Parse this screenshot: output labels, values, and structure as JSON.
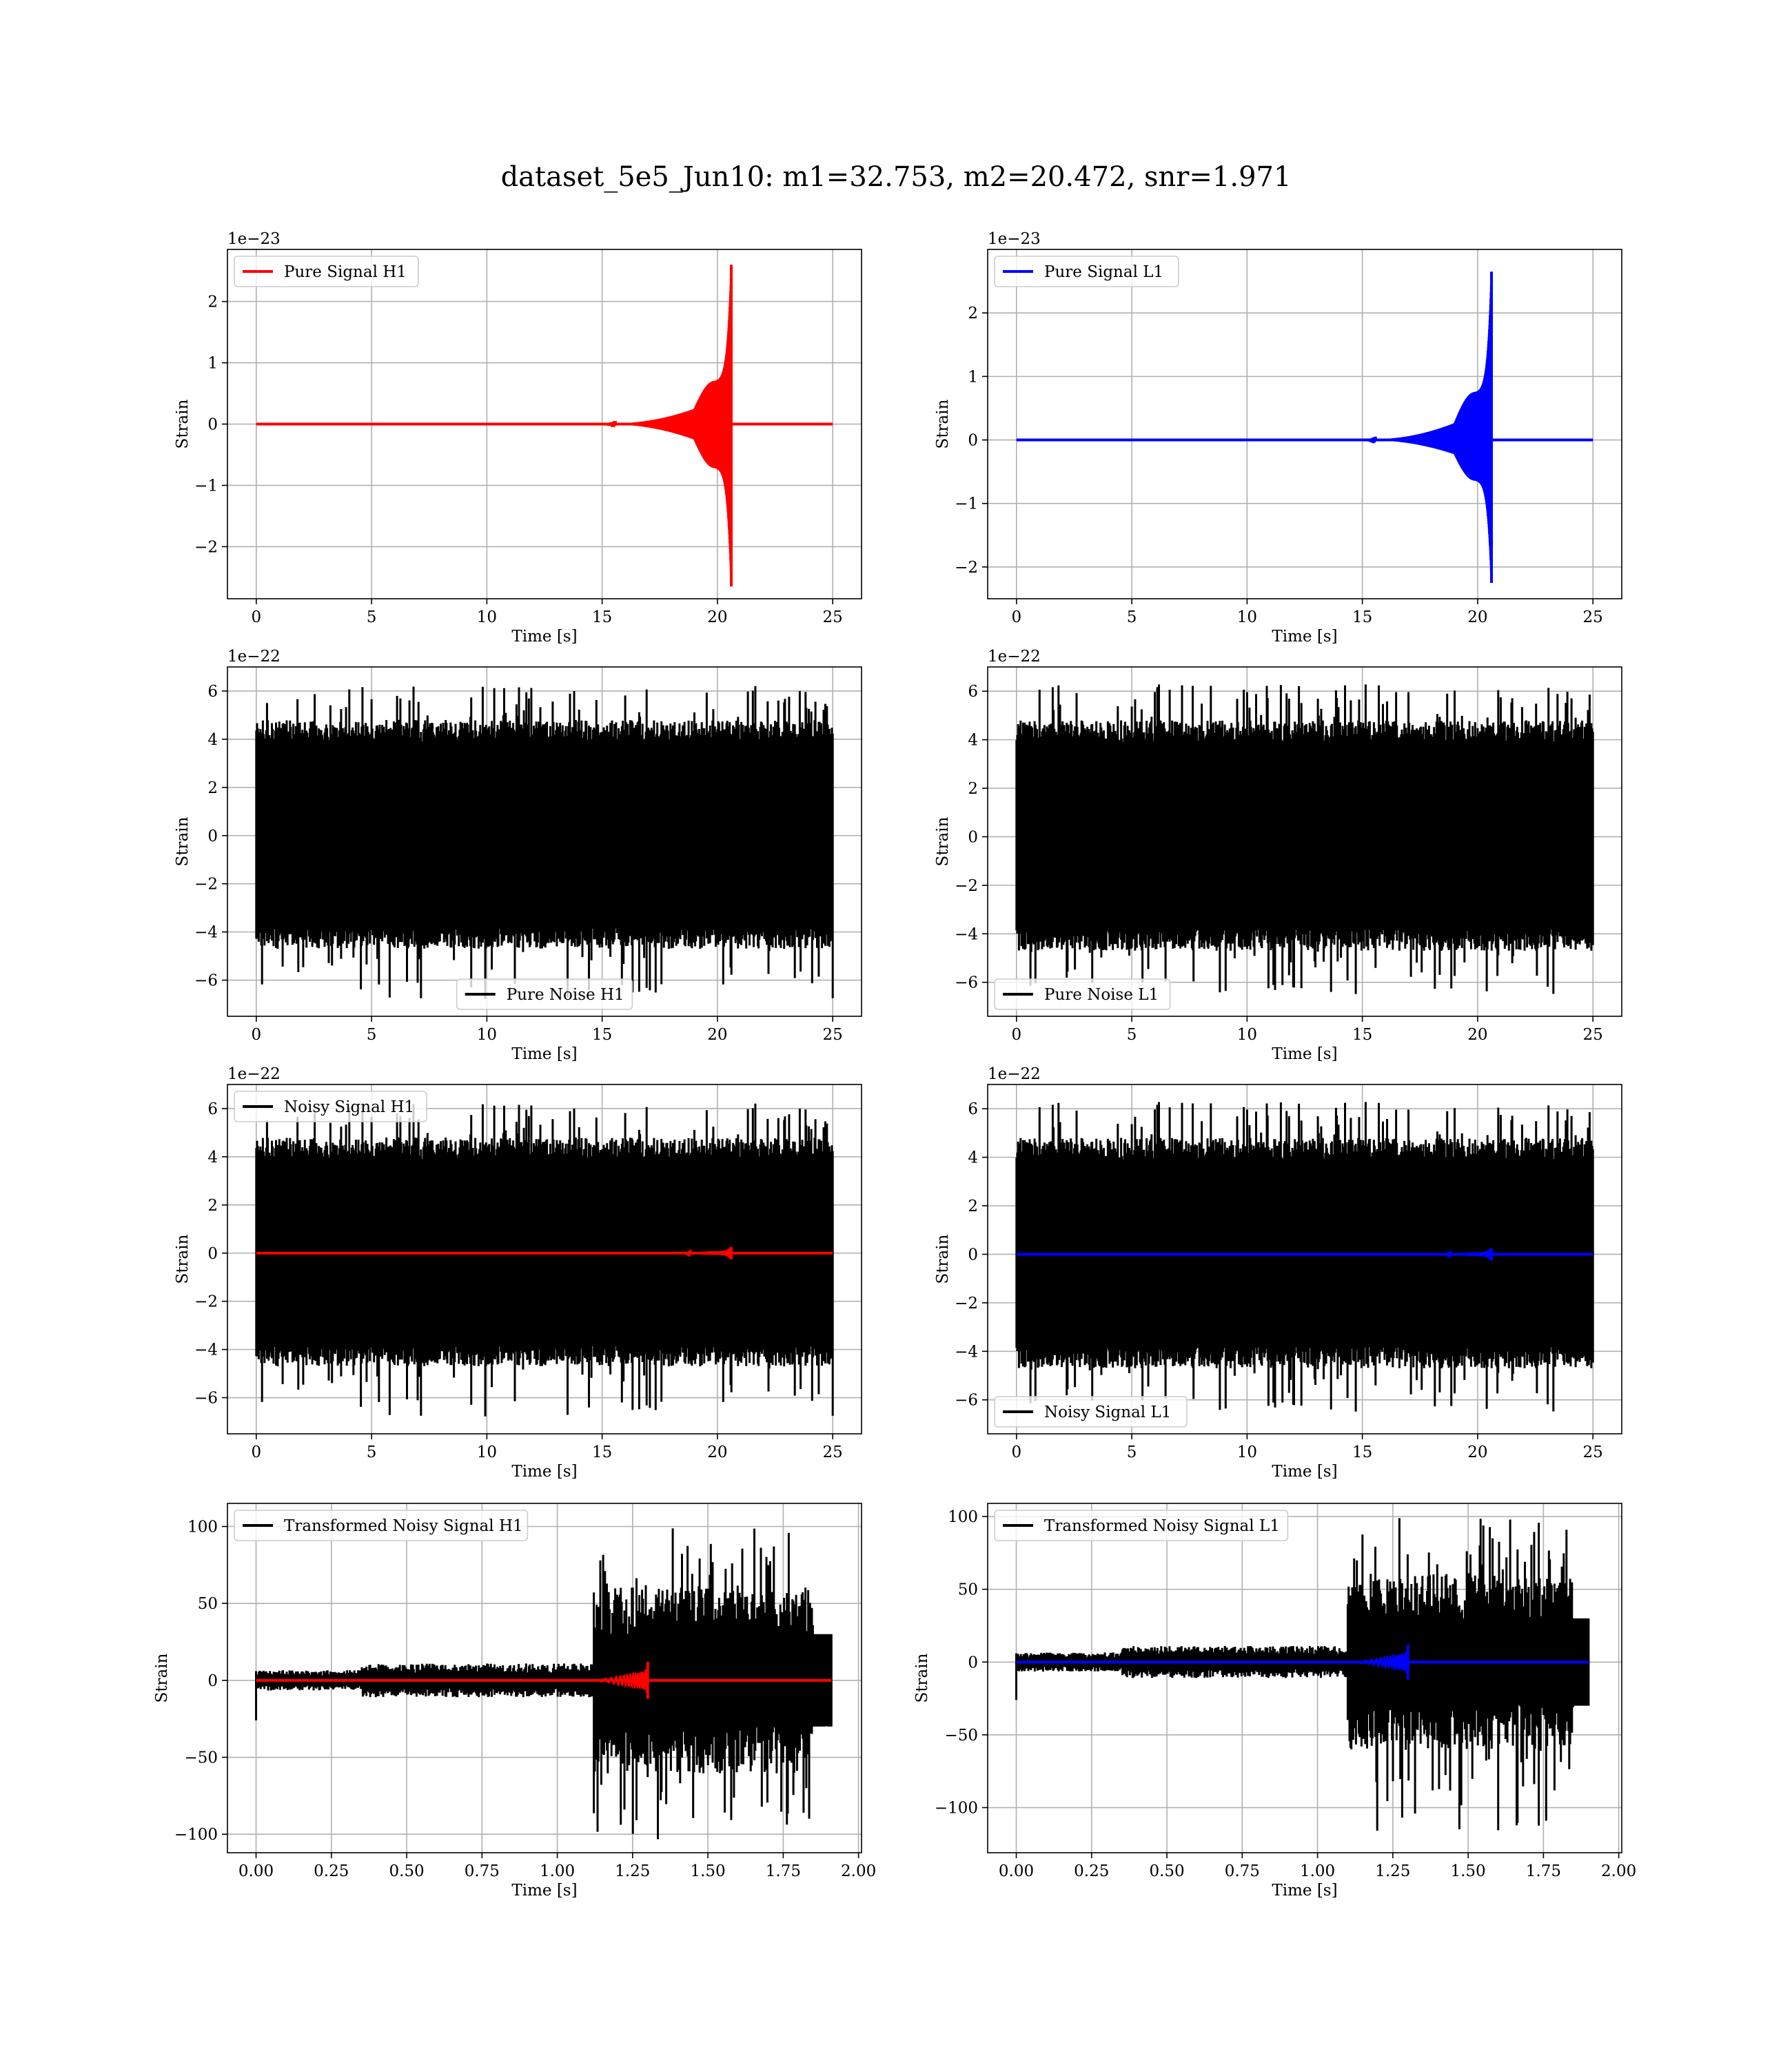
{
  "figure": {
    "title": "dataset_5e5_Jun10: m1=32.753, m2=20.472, snr=1.971"
  },
  "chart_data": [
    {
      "id": "pure-signal-h1",
      "type": "line",
      "ylabel": "Strain",
      "xlabel": "Time [s]",
      "y_offset": "1e−23",
      "xlim": [
        -1.25,
        26.25
      ],
      "ylim": [
        -2.85,
        2.85
      ],
      "xticks": [
        0,
        5,
        10,
        15,
        20,
        25
      ],
      "yticks": [
        -2,
        -1,
        0,
        1,
        2
      ],
      "grid": true,
      "legend_loc": "upper-left",
      "series": [
        {
          "name": "Pure Signal H1",
          "color": "#ff0000",
          "kind": "chirp",
          "start": 0,
          "end": 25,
          "merger": 20.6,
          "peak_pos": 2.6,
          "peak_neg": -2.65,
          "inspiral": 0.7,
          "inspiral_start": 19.0,
          "visible_from": 15.0
        }
      ]
    },
    {
      "id": "pure-signal-l1",
      "type": "line",
      "ylabel": "Strain",
      "xlabel": "Time [s]",
      "y_offset": "1e−23",
      "xlim": [
        -1.25,
        26.25
      ],
      "ylim": [
        -2.5,
        3.0
      ],
      "xticks": [
        0,
        5,
        10,
        15,
        20,
        25
      ],
      "yticks": [
        -2,
        -1,
        0,
        1,
        2
      ],
      "grid": true,
      "legend_loc": "upper-left",
      "series": [
        {
          "name": "Pure Signal L1",
          "color": "#0000ff",
          "kind": "chirp",
          "start": 0,
          "end": 25,
          "merger": 20.6,
          "peak_pos": 2.65,
          "peak_neg": -2.25,
          "inspiral": 0.75,
          "inspiral_start": 19.0,
          "visible_from": 15.0
        }
      ]
    },
    {
      "id": "pure-noise-h1",
      "type": "line",
      "ylabel": "Strain",
      "xlabel": "Time [s]",
      "y_offset": "1e−22",
      "xlim": [
        -1.25,
        26.25
      ],
      "ylim": [
        -7.5,
        7.0
      ],
      "xticks": [
        0,
        5,
        10,
        15,
        20,
        25
      ],
      "yticks": [
        -6,
        -4,
        -2,
        0,
        2,
        4,
        6
      ],
      "grid": true,
      "legend_loc": "lower-center",
      "series": [
        {
          "name": "Pure Noise H1",
          "color": "#000000",
          "kind": "noise",
          "start": 0,
          "end": 25,
          "base": 3.9,
          "max_pos": 6.25,
          "max_neg": -6.8,
          "seed": 11
        }
      ]
    },
    {
      "id": "pure-noise-l1",
      "type": "line",
      "ylabel": "Strain",
      "xlabel": "Time [s]",
      "y_offset": "1e−22",
      "xlim": [
        -1.25,
        26.25
      ],
      "ylim": [
        -7.4,
        7.0
      ],
      "xticks": [
        0,
        5,
        10,
        15,
        20,
        25
      ],
      "yticks": [
        -6,
        -4,
        -2,
        0,
        2,
        4,
        6
      ],
      "grid": true,
      "legend_loc": "lower-left",
      "series": [
        {
          "name": "Pure Noise L1",
          "color": "#000000",
          "kind": "noise",
          "start": 0,
          "end": 25,
          "base": 3.9,
          "max_pos": 6.3,
          "max_neg": -6.5,
          "seed": 23
        }
      ]
    },
    {
      "id": "noisy-signal-h1",
      "type": "line",
      "ylabel": "Strain",
      "xlabel": "Time [s]",
      "y_offset": "1e−22",
      "xlim": [
        -1.25,
        26.25
      ],
      "ylim": [
        -7.5,
        7.0
      ],
      "xticks": [
        0,
        5,
        10,
        15,
        20,
        25
      ],
      "yticks": [
        -6,
        -4,
        -2,
        0,
        2,
        4,
        6
      ],
      "grid": true,
      "legend_loc": "upper-left",
      "series": [
        {
          "name": "Noisy Signal H1",
          "color": "#000000",
          "kind": "noise",
          "start": 0,
          "end": 25,
          "base": 3.9,
          "max_pos": 6.25,
          "max_neg": -6.8,
          "seed": 11
        },
        {
          "name": "",
          "color": "#ff0000",
          "kind": "chirp",
          "start": 0,
          "end": 25,
          "merger": 20.6,
          "peak_pos": 0.26,
          "peak_neg": -0.26,
          "inspiral": 0.07,
          "inspiral_start": 19.0,
          "visible_from": 18.5
        }
      ]
    },
    {
      "id": "noisy-signal-l1",
      "type": "line",
      "ylabel": "Strain",
      "xlabel": "Time [s]",
      "y_offset": "1e−22",
      "xlim": [
        -1.25,
        26.25
      ],
      "ylim": [
        -7.4,
        7.0
      ],
      "xticks": [
        0,
        5,
        10,
        15,
        20,
        25
      ],
      "yticks": [
        -6,
        -4,
        -2,
        0,
        2,
        4,
        6
      ],
      "grid": true,
      "legend_loc": "lower-left",
      "series": [
        {
          "name": "Noisy Signal L1",
          "color": "#000000",
          "kind": "noise",
          "start": 0,
          "end": 25,
          "base": 3.9,
          "max_pos": 6.3,
          "max_neg": -6.5,
          "seed": 23
        },
        {
          "name": "",
          "color": "#0000ff",
          "kind": "chirp",
          "start": 0,
          "end": 25,
          "merger": 20.6,
          "peak_pos": 0.26,
          "peak_neg": -0.26,
          "inspiral": 0.07,
          "inspiral_start": 19.0,
          "visible_from": 18.5
        }
      ]
    },
    {
      "id": "transformed-noisy-signal-h1",
      "type": "line",
      "ylabel": "Strain",
      "xlabel": "Time [s]",
      "y_offset": "",
      "xlim": [
        -0.095,
        2.01
      ],
      "ylim": [
        -112,
        115
      ],
      "xticks": [
        0.0,
        0.25,
        0.5,
        0.75,
        1.0,
        1.25,
        1.5,
        1.75,
        2.0
      ],
      "xtick_labels": [
        "0.00",
        "0.25",
        "0.50",
        "0.75",
        "1.00",
        "1.25",
        "1.50",
        "1.75",
        "2.00"
      ],
      "yticks": [
        -100,
        -50,
        0,
        50,
        100
      ],
      "grid": true,
      "legend_loc": "upper-left",
      "series": [
        {
          "name": "Transformed Noisy Signal H1",
          "color": "#000000",
          "kind": "tnoise",
          "start": 0,
          "end": 1.91,
          "low": 6,
          "mid": 10,
          "high": 55,
          "jump": 1.12,
          "max_pos": 101,
          "max_neg": -106,
          "seed": 5
        },
        {
          "name": "",
          "color": "#ff0000",
          "kind": "tchirp",
          "start": 0,
          "end": 1.91,
          "merger": 1.3,
          "onset": 1.1,
          "peak": 8
        }
      ]
    },
    {
      "id": "transformed-noisy-signal-l1",
      "type": "line",
      "ylabel": "Strain",
      "xlabel": "Time [s]",
      "y_offset": "",
      "xlim": [
        -0.095,
        2.01
      ],
      "ylim": [
        -131,
        109
      ],
      "xticks": [
        0.0,
        0.25,
        0.5,
        0.75,
        1.0,
        1.25,
        1.5,
        1.75,
        2.0
      ],
      "xtick_labels": [
        "0.00",
        "0.25",
        "0.50",
        "0.75",
        "1.00",
        "1.25",
        "1.50",
        "1.75",
        "2.00"
      ],
      "yticks": [
        -100,
        -50,
        0,
        50,
        100
      ],
      "grid": true,
      "legend_loc": "upper-left",
      "series": [
        {
          "name": "Transformed Noisy Signal L1",
          "color": "#000000",
          "kind": "tnoise",
          "start": 0,
          "end": 1.9,
          "low": 6,
          "mid": 10,
          "high": 55,
          "jump": 1.1,
          "max_pos": 99,
          "max_neg": -121,
          "seed": 9
        },
        {
          "name": "",
          "color": "#0000ff",
          "kind": "tchirp",
          "start": 0,
          "end": 1.9,
          "merger": 1.3,
          "onset": 1.1,
          "peak": 8
        }
      ]
    }
  ]
}
